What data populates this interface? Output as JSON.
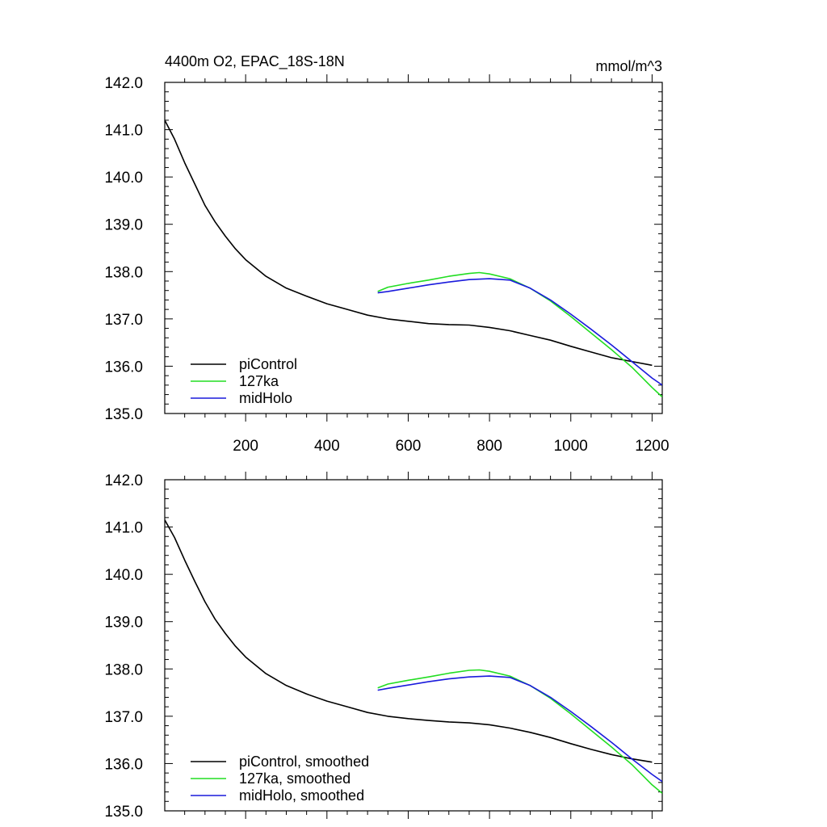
{
  "colors": {
    "piControl": "#000000",
    "ka127": "#22dd22",
    "midHolo": "#1a1adc",
    "axis": "#000000",
    "background": "#ffffff"
  },
  "chart_data": [
    {
      "type": "line",
      "title": "4400m O2, EPAC_18S-18N",
      "units": "mmol/m^3",
      "xlabel": "",
      "ylabel": "",
      "xlim": [
        1,
        1225
      ],
      "ylim": [
        135.0,
        142.0
      ],
      "grid": false,
      "xticks": [
        200,
        400,
        600,
        800,
        1000,
        1200
      ],
      "xtick_labels": [
        "200",
        "400",
        "600",
        "800",
        "1000",
        "1200"
      ],
      "yticks": [
        135.0,
        136.0,
        137.0,
        138.0,
        139.0,
        140.0,
        141.0,
        142.0
      ],
      "ytick_labels": [
        "135.0",
        "136.0",
        "137.0",
        "138.0",
        "139.0",
        "140.0",
        "141.0",
        "142.0"
      ],
      "legend": "bottom-left",
      "series": [
        {
          "name": "piControl",
          "color_key": "piControl",
          "x": [
            1,
            25,
            50,
            75,
            100,
            125,
            150,
            175,
            200,
            250,
            300,
            350,
            400,
            450,
            500,
            550,
            600,
            650,
            700,
            750,
            800,
            850,
            900,
            950,
            1000,
            1050,
            1100,
            1150,
            1200
          ],
          "y": [
            141.2,
            140.8,
            140.3,
            139.85,
            139.4,
            139.05,
            138.75,
            138.48,
            138.25,
            137.9,
            137.65,
            137.48,
            137.32,
            137.2,
            137.08,
            137.0,
            136.95,
            136.9,
            136.88,
            136.87,
            136.82,
            136.75,
            136.65,
            136.55,
            136.42,
            136.3,
            136.18,
            136.1,
            136.02
          ]
        },
        {
          "name": "127ka",
          "color_key": "ka127",
          "x": [
            525,
            550,
            600,
            650,
            700,
            750,
            775,
            800,
            850,
            900,
            950,
            1000,
            1050,
            1100,
            1150,
            1200,
            1225
          ],
          "y": [
            137.58,
            137.67,
            137.75,
            137.82,
            137.9,
            137.96,
            137.98,
            137.95,
            137.85,
            137.65,
            137.38,
            137.05,
            136.7,
            136.35,
            135.98,
            135.55,
            135.35
          ]
        },
        {
          "name": "midHolo",
          "color_key": "midHolo",
          "x": [
            525,
            550,
            600,
            650,
            700,
            750,
            800,
            850,
            900,
            950,
            1000,
            1050,
            1100,
            1150,
            1200,
            1225
          ],
          "y": [
            137.55,
            137.58,
            137.65,
            137.72,
            137.78,
            137.83,
            137.85,
            137.82,
            137.65,
            137.4,
            137.1,
            136.78,
            136.45,
            136.1,
            135.75,
            135.6
          ]
        }
      ]
    },
    {
      "type": "line",
      "title": "",
      "xlabel": "",
      "ylabel": "",
      "xlim": [
        1,
        1225
      ],
      "ylim": [
        135.0,
        142.0
      ],
      "grid": false,
      "xticks": [
        200,
        400,
        600,
        800,
        1000,
        1200
      ],
      "xtick_labels": [],
      "yticks": [
        135.0,
        136.0,
        137.0,
        138.0,
        139.0,
        140.0,
        141.0,
        142.0
      ],
      "ytick_labels": [
        "135.0",
        "136.0",
        "137.0",
        "138.0",
        "139.0",
        "140.0",
        "141.0",
        "142.0"
      ],
      "legend": "bottom-left",
      "series": [
        {
          "name": "piControl, smoothed",
          "color_key": "piControl",
          "x": [
            1,
            25,
            50,
            75,
            100,
            125,
            150,
            175,
            200,
            250,
            300,
            350,
            400,
            450,
            500,
            550,
            600,
            650,
            700,
            750,
            800,
            850,
            900,
            950,
            1000,
            1050,
            1100,
            1150,
            1200
          ],
          "y": [
            141.15,
            140.78,
            140.3,
            139.85,
            139.42,
            139.05,
            138.75,
            138.48,
            138.25,
            137.9,
            137.65,
            137.47,
            137.32,
            137.2,
            137.08,
            137.0,
            136.95,
            136.91,
            136.88,
            136.86,
            136.82,
            136.75,
            136.66,
            136.55,
            136.42,
            136.3,
            136.19,
            136.1,
            136.03
          ]
        },
        {
          "name": "127ka, smoothed",
          "color_key": "ka127",
          "x": [
            525,
            550,
            600,
            650,
            700,
            750,
            775,
            800,
            850,
            900,
            950,
            1000,
            1050,
            1100,
            1150,
            1200,
            1225
          ],
          "y": [
            137.6,
            137.68,
            137.76,
            137.83,
            137.91,
            137.97,
            137.98,
            137.95,
            137.85,
            137.65,
            137.38,
            137.05,
            136.7,
            136.35,
            135.98,
            135.55,
            135.37
          ]
        },
        {
          "name": "midHolo, smoothed",
          "color_key": "midHolo",
          "x": [
            525,
            550,
            600,
            650,
            700,
            750,
            800,
            850,
            900,
            950,
            1000,
            1050,
            1100,
            1150,
            1200,
            1225
          ],
          "y": [
            137.55,
            137.59,
            137.66,
            137.73,
            137.79,
            137.83,
            137.85,
            137.82,
            137.65,
            137.4,
            137.1,
            136.78,
            136.45,
            136.1,
            135.77,
            135.62
          ]
        }
      ]
    }
  ]
}
